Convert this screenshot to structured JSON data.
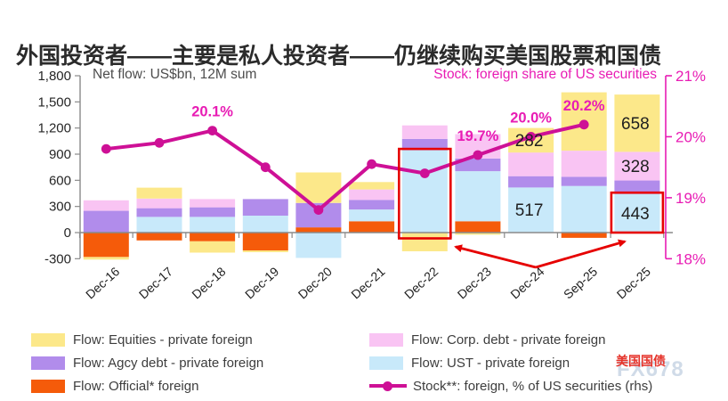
{
  "header": {
    "title": "外国投资者——主要是私人投资者——仍继续购买美国股票和国债"
  },
  "colors": {
    "accent_magenta": "#e81cb4",
    "line_magenta": "#ce1096",
    "red_highlight": "#e60000",
    "axis_gray": "#8a8a8a",
    "text_dark": "#1f1f1f"
  },
  "watermark": {
    "line1": "美国国债",
    "line2": "FX678"
  },
  "chart_data": {
    "type": "bar",
    "stacked": true,
    "grid": false,
    "categories": [
      "Dec-16",
      "Dec-17",
      "Dec-18",
      "Dec-19",
      "Dec-20",
      "Dec-21",
      "Dec-22",
      "Dec-23",
      "Dec-24",
      "Sep-25",
      "Dec-25"
    ],
    "series": [
      {
        "id": "official",
        "name": "Flow: Official* foreign",
        "color": "#f55b0a",
        "values": [
          -280,
          -90,
          -100,
          -205,
          60,
          130,
          0,
          130,
          0,
          -60,
          0
        ]
      },
      {
        "id": "ust",
        "name": "Flow: UST - private foreign",
        "color": "#c8e9fa",
        "values": [
          0,
          180,
          180,
          195,
          -290,
          135,
          945,
          575,
          517,
          535,
          443
        ]
      },
      {
        "id": "agcy",
        "name": "Flow: Agcy debt - private foreign",
        "color": "#b18ceb",
        "values": [
          250,
          100,
          110,
          190,
          280,
          110,
          130,
          145,
          130,
          105,
          155
        ]
      },
      {
        "id": "corp",
        "name": "Flow: Corp. debt - private foreign",
        "color": "#f9c4f3",
        "values": [
          120,
          110,
          95,
          0,
          0,
          120,
          155,
          280,
          272,
          300,
          328
        ]
      },
      {
        "id": "equities",
        "name": "Flow: Equities - private foreign",
        "color": "#fce88a",
        "values": [
          -30,
          125,
          -130,
          -20,
          350,
          85,
          -215,
          -25,
          282,
          670,
          658
        ]
      }
    ],
    "line_series": {
      "id": "stock",
      "name": "Stock**: foreign, % of US securities (rhs)",
      "color": "#ce1096",
      "values": [
        19.8,
        19.9,
        20.1,
        19.5,
        18.8,
        19.55,
        19.4,
        19.7,
        20.0,
        20.2,
        null
      ]
    },
    "left_axis": {
      "title": "Net flow: US$bn, 12M sum",
      "min": -300,
      "max": 1800,
      "step": 300,
      "ticks": [
        "1,800",
        "1,500",
        "1,200",
        "900",
        "600",
        "300",
        "0",
        "-300"
      ]
    },
    "right_axis": {
      "title": "Stock: foreign share of US securities",
      "min": 18,
      "max": 21,
      "step": 1,
      "ticks": [
        "21%",
        "20%",
        "19%",
        "18%"
      ]
    },
    "annotations": [
      {
        "category": "Dec-18",
        "text": "20.1%"
      },
      {
        "category": "Dec-23",
        "text": "19.7%"
      },
      {
        "category": "Dec-24",
        "text": "20.0%"
      },
      {
        "category": "Sep-25",
        "text": "20.2%"
      }
    ],
    "bar_value_labels": [
      {
        "category": "Dec-24",
        "series": "equities",
        "text": "282"
      },
      {
        "category": "Dec-24",
        "series": "ust",
        "text": "517"
      },
      {
        "category": "Dec-25",
        "series": "equities",
        "text": "658"
      },
      {
        "category": "Dec-25",
        "series": "corp",
        "text": "328"
      },
      {
        "category": "Dec-25",
        "series": "ust",
        "text": "443"
      }
    ],
    "highlight_boxes": [
      {
        "category": "Dec-22",
        "series": "ust"
      },
      {
        "category": "Dec-25",
        "series": "ust"
      }
    ]
  },
  "legend": {
    "col1": [
      {
        "swatch": "equities"
      },
      {
        "swatch": "agcy"
      },
      {
        "swatch": "official"
      }
    ],
    "col2": [
      {
        "swatch": "corp"
      },
      {
        "swatch": "ust"
      },
      {
        "swatch": "line"
      }
    ]
  }
}
